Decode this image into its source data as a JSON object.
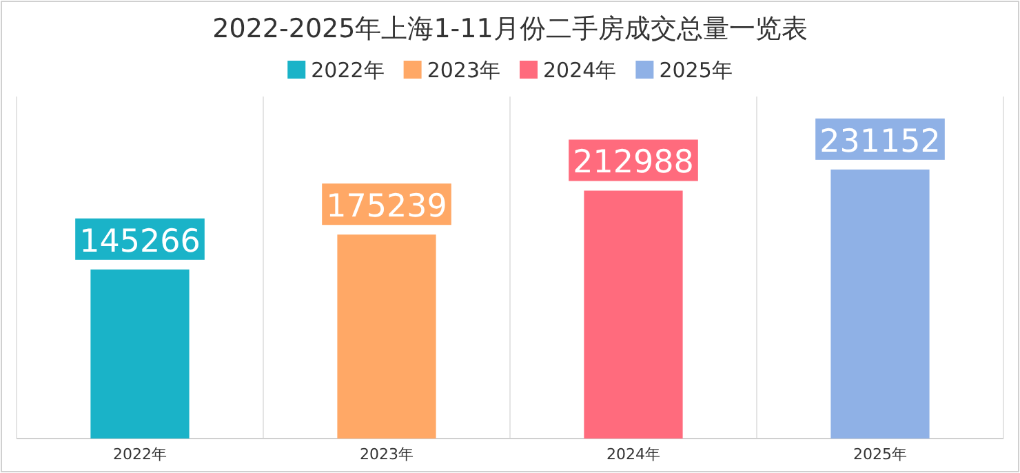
{
  "chart_data": {
    "type": "bar",
    "title": "2022-2025年上海1-11月份二手房成交总量一览表",
    "categories": [
      "2022年",
      "2023年",
      "2024年",
      "2025年"
    ],
    "series": [
      {
        "name": "2022年",
        "color": "#1ab3c8",
        "values": [
          145266,
          null,
          null,
          null
        ]
      },
      {
        "name": "2023年",
        "color": "#ffa866",
        "values": [
          null,
          175239,
          null,
          null
        ]
      },
      {
        "name": "2024年",
        "color": "#ff6b7d",
        "values": [
          null,
          null,
          212988,
          null
        ]
      },
      {
        "name": "2025年",
        "color": "#8fb1e6",
        "values": [
          null,
          null,
          null,
          231152
        ]
      }
    ],
    "data_labels": true,
    "legend": "top",
    "grid": "x"
  }
}
